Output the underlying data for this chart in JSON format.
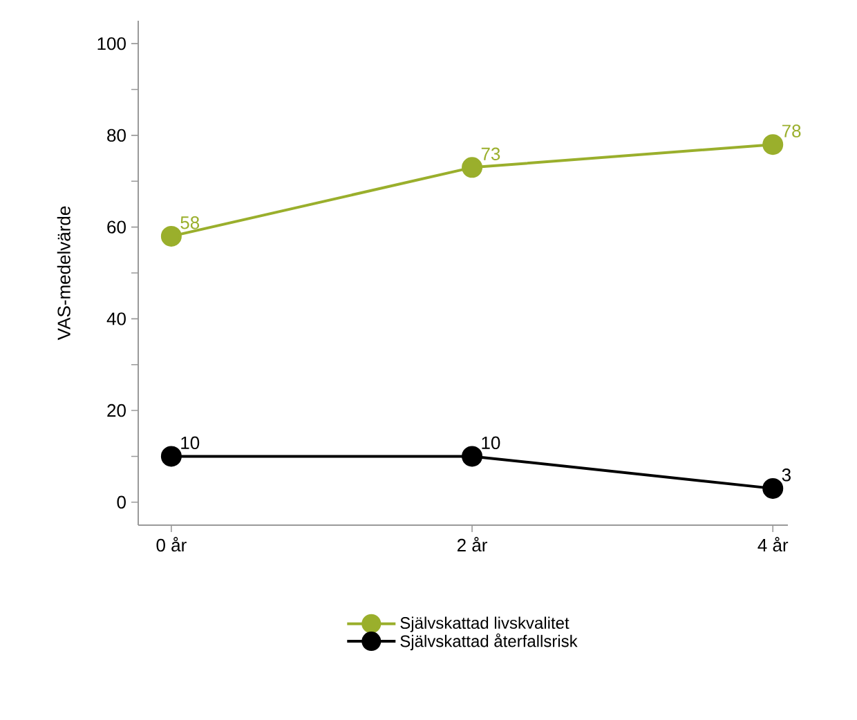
{
  "chart_data": {
    "type": "line",
    "ylabel": "VAS-medelvärde",
    "categories": [
      "0 år",
      "2 år",
      "4 år"
    ],
    "series": [
      {
        "name": "Självskattad livskvalitet",
        "color": "#9aaf2c",
        "values": [
          58,
          73,
          78
        ]
      },
      {
        "name": "Självskattad återfallsrisk",
        "color": "#000000",
        "values": [
          10,
          10,
          3
        ]
      }
    ],
    "ylim": [
      -5,
      105
    ],
    "yticks": [
      0,
      {
        "value": 10,
        "label": null
      },
      20,
      {
        "value": 30,
        "label": null
      },
      40,
      {
        "value": 50,
        "label": null
      },
      60,
      {
        "value": 70,
        "label": null
      },
      80,
      {
        "value": 90,
        "label": null
      },
      100
    ],
    "data_labels": true,
    "marker": "circle",
    "line_style": "solid",
    "legend": "bottom",
    "grid": false
  }
}
